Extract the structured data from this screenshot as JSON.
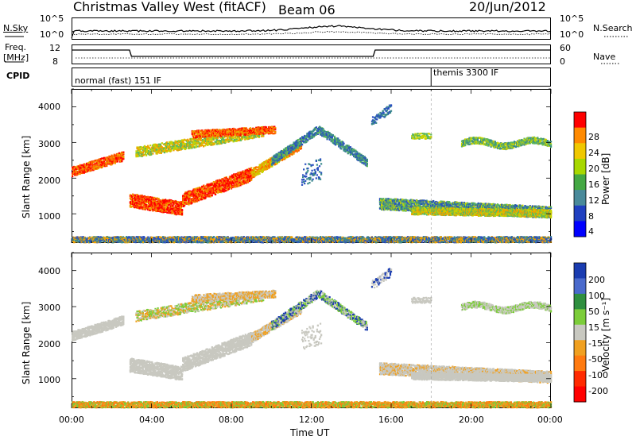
{
  "header": {
    "title": "Christmas Valley West (fitACF)",
    "beam": "Beam 06",
    "date": "20/Jun/2012"
  },
  "top_panel": {
    "left_label": "N.Sky",
    "right_label": "N.Search",
    "left_ticks": [
      "10^5",
      "10^0"
    ],
    "right_ticks": [
      "10^5",
      "10^0"
    ]
  },
  "freq_panel": {
    "left_label_1": "Freq.",
    "left_label_2": "[MHz]",
    "right_label": "Nave",
    "left_ticks": [
      "12",
      "8"
    ],
    "right_ticks": [
      "60",
      "0"
    ]
  },
  "cpid_panel": {
    "label": "CPID",
    "mode_1": "normal (fast) 151 IF",
    "mode_2": "themis 3300 IF"
  },
  "chart_data": [
    {
      "type": "heatmap",
      "panel": "power",
      "ylabel": "Slant Range [km]",
      "xlabel": "",
      "xlim": [
        "00:00",
        "24:00"
      ],
      "ylim": [
        180,
        4500
      ],
      "yticks": [
        "1000",
        "2000",
        "3000",
        "4000"
      ],
      "colorbar": {
        "label": "Power [dB]",
        "ticks": [
          "28",
          "24",
          "20",
          "16",
          "12",
          "8",
          "4"
        ],
        "colors": [
          "#ff0000",
          "#ff8a00",
          "#f0c800",
          "#a8d800",
          "#44a844",
          "#4a8a9a",
          "#2040c0",
          "#0000ff"
        ]
      }
    },
    {
      "type": "heatmap",
      "panel": "velocity",
      "ylabel": "Slant Range [km]",
      "xlabel": "Time UT",
      "xlim": [
        "00:00",
        "24:00"
      ],
      "ylim": [
        180,
        4500
      ],
      "yticks": [
        "1000",
        "2000",
        "3000",
        "4000"
      ],
      "xticks": [
        "00:00",
        "04:00",
        "08:00",
        "12:00",
        "16:00",
        "20:00",
        "00:00"
      ],
      "colorbar": {
        "label": "Velocity [m s⁻¹]",
        "ticks": [
          "200",
          "100",
          "50",
          "15",
          "-15",
          "-50",
          "-100",
          "-200"
        ],
        "colors": [
          "#1a3cb0",
          "#4a6acc",
          "#2f8f3f",
          "#7ccd3a",
          "#c8c8c0",
          "#f0a020",
          "#ff7a10",
          "#ff2a00",
          "#ff0000"
        ]
      }
    }
  ]
}
